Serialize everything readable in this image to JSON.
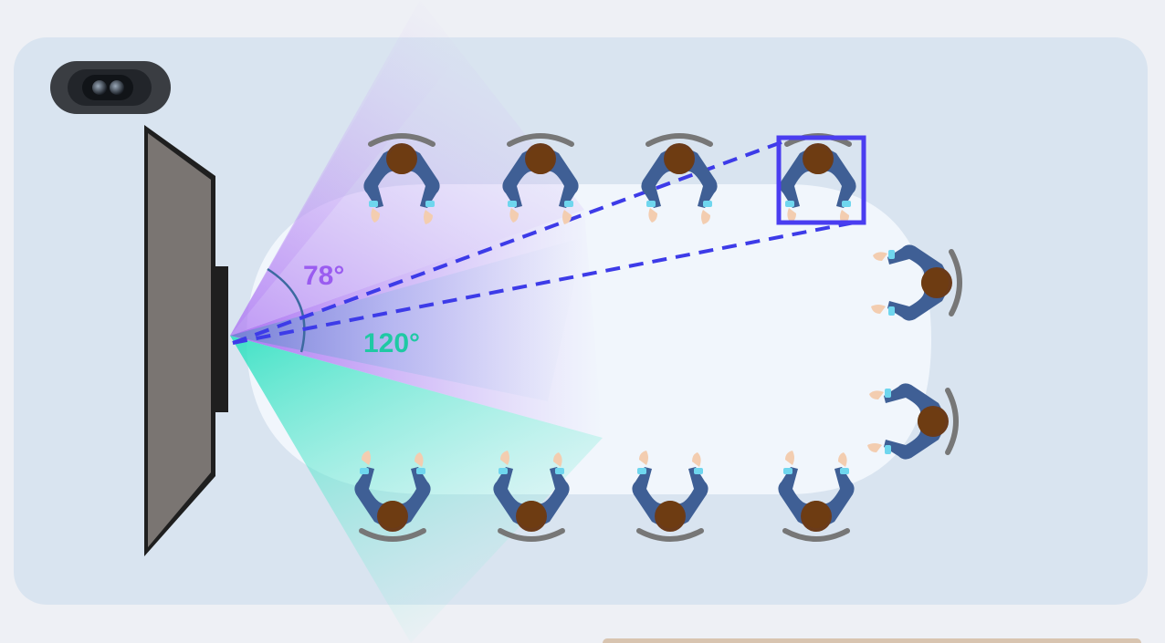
{
  "labels": {
    "narrow_angle": "78°",
    "wide_angle": "120°"
  },
  "colors": {
    "page_background": "#eef0f5",
    "room_background": "#d9e4f0",
    "table": "#f1f6fc",
    "narrow_fov": "#a86cf2",
    "wide_fov": "#2ee0c0",
    "narrow_label": "#9a5cf0",
    "wide_label": "#1fc9a4",
    "tracking_box": "#4a3df0",
    "dashed_lines": "#3d3be8",
    "display_frame": "#1f1f1f",
    "display_screen": "#7a7572",
    "jacket": "#3f5f95",
    "hair": "#6b3b1a",
    "chair": "#777777",
    "skin": "#f3cdb0",
    "cuff": "#6fd6ee"
  },
  "icons": {
    "camera": "camera-device-icon",
    "display": "display-screen-icon",
    "person": "seated-person-icon"
  },
  "seating": {
    "top_row": 4,
    "bottom_row": 4,
    "right_end": 2,
    "tracked_person": "top-row-4"
  }
}
